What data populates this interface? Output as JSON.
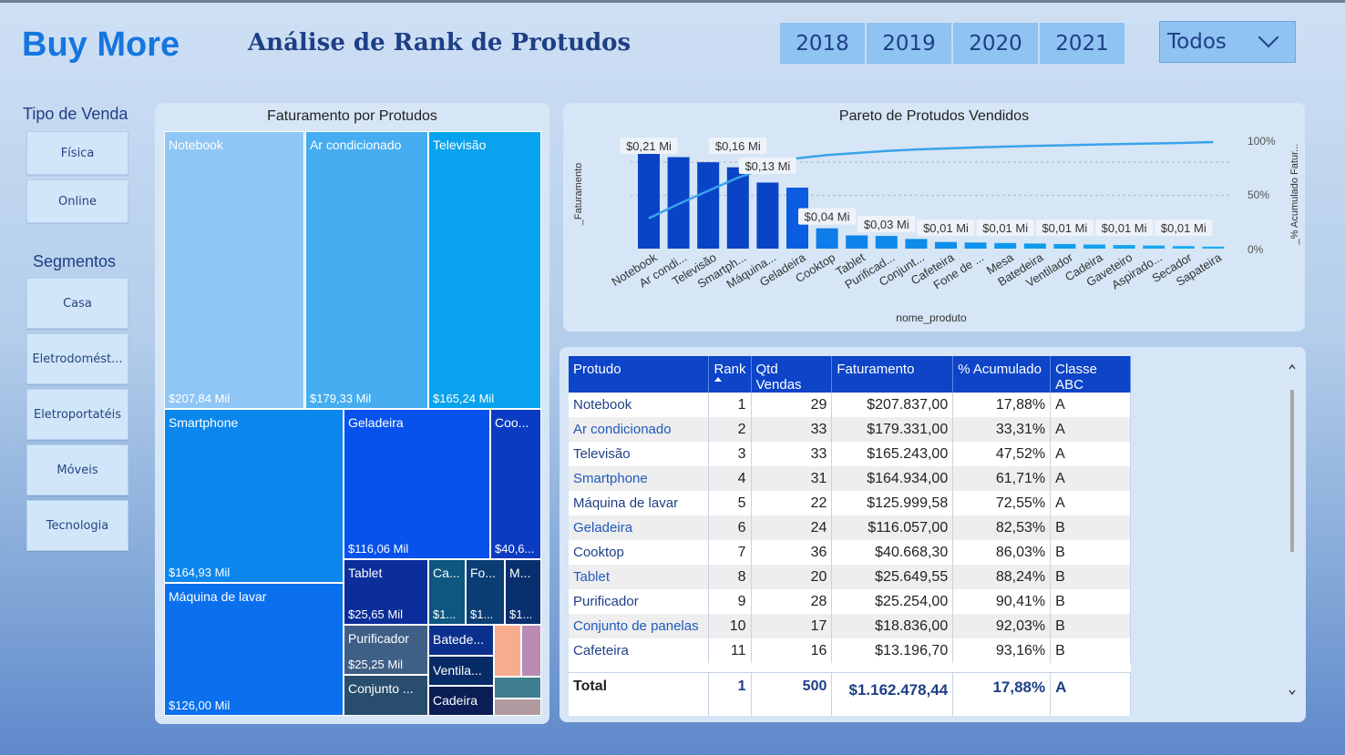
{
  "brand": "Buy More",
  "page_title": "Análise de Rank de Protudos",
  "years": [
    "2018",
    "2019",
    "2020",
    "2021"
  ],
  "dropdown": {
    "selected": "Todos"
  },
  "sidebar": {
    "tipo_heading": "Tipo de Venda",
    "tipo_items": [
      "Física",
      "Online"
    ],
    "segmentos_heading": "Segmentos",
    "segmentos_items": [
      "Casa",
      "Eletrodomést...",
      "Eletroportatéis",
      "Móveis",
      "Tecnologia"
    ]
  },
  "colors": {
    "accent": "#1676e0",
    "header_blue": "#0d44c8",
    "title_navy": "#1e3f86",
    "panel": "#d6e6f6"
  },
  "treemap": {
    "title": "Faturamento por Protudos",
    "tiles": [
      {
        "label": "Notebook",
        "value": "$207,84 Mil",
        "color": "#8ec6f5"
      },
      {
        "label": "Ar condicionado",
        "value": "$179,33 Mil",
        "color": "#45adf0"
      },
      {
        "label": "Televisão",
        "value": "$165,24 Mil",
        "color": "#08a2ee"
      },
      {
        "label": "Smartphone",
        "value": "$164,93 Mil",
        "color": "#0b86ec"
      },
      {
        "label": "Geladeira",
        "value": "$116,06 Mil",
        "color": "#0752ec"
      },
      {
        "label": "Coo...",
        "value": "$40,6...",
        "color": "#0a3bc2"
      },
      {
        "label": "Máquina de lavar",
        "value": "$126,00 Mil",
        "color": "#0a70ee"
      },
      {
        "label": "Tablet",
        "value": "$25,65 Mil",
        "color": "#0c2e9a"
      },
      {
        "label": "Ca...",
        "value": "$1...",
        "color": "#0d5780"
      },
      {
        "label": "Fo...",
        "value": "$1...",
        "color": "#0a3d74"
      },
      {
        "label": "M...",
        "value": "$1...",
        "color": "#092f6e"
      },
      {
        "label": "Purificador",
        "value": "$25,25 Mil",
        "color": "#3f5f86"
      },
      {
        "label": "Batede...",
        "value": "",
        "color": "#0b2f8c"
      },
      {
        "label": "Ventila...",
        "value": "",
        "color": "#062b66"
      },
      {
        "label": "Cadeira",
        "value": "",
        "color": "#0a1d55"
      },
      {
        "label": "Conjunto ...",
        "value": "",
        "color": "#284d6d"
      },
      {
        "label": "",
        "value": "",
        "color": "#f7ad8d"
      },
      {
        "label": "",
        "value": "",
        "color": "#b98bb2"
      },
      {
        "label": "",
        "value": "",
        "color": "#3f7e8e"
      },
      {
        "label": "",
        "value": "",
        "color": "#b09a9f"
      }
    ]
  },
  "chart_data": {
    "type": "bar",
    "title": "Pareto de Protudos Vendidos",
    "xlabel": "nome_produto",
    "ylabel": "_Faturamento",
    "y2label": "_% Acumulado Fatur...",
    "y2ticks": [
      "100%",
      "50%",
      "0%"
    ],
    "grid": true,
    "categories": [
      "Notebook",
      "Ar condi...",
      "Televisão",
      "Smartph...",
      "Máquina...",
      "Geladeira",
      "Cooktop",
      "Tablet",
      "Purificad...",
      "Conjunt...",
      "Cafeteira",
      "Fone de ...",
      "Mesa",
      "Batedeira",
      "Ventilador",
      "Cadeira",
      "Gaveteiro",
      "Aspirado...",
      "Secador",
      "Sapateira"
    ],
    "series": [
      {
        "values": [
          0.21,
          0.18,
          0.17,
          0.16,
          0.13,
          0.12,
          0.04,
          0.026,
          0.025,
          0.019,
          0.013,
          0.012,
          0.011,
          0.01,
          0.009,
          0.008,
          0.007,
          0.006,
          0.005,
          0.004
        ],
        "colors": [
          "#0a44c6",
          "#0a44c6",
          "#0a44c6",
          "#0a44c6",
          "#0a44c6",
          "#0b5ce0",
          "#0e7de9",
          "#0e84ea",
          "#0d8aeb",
          "#0d8ceb",
          "#0d90ec",
          "#0d94ec",
          "#0e98ec",
          "#0f9bec",
          "#119eed",
          "#13a1ed",
          "#15a4ee",
          "#17a7ee",
          "#19aaef",
          "#1baeef"
        ]
      },
      {
        "values": [
          17.88,
          33.31,
          47.52,
          61.71,
          72.55,
          82.53,
          86.03,
          88.24,
          90.41,
          92.03,
          93.16,
          94.2,
          95.1,
          95.9,
          96.6,
          97.3,
          97.9,
          98.5,
          99.1,
          100
        ]
      }
    ],
    "data_labels": [
      {
        "index": 0,
        "text": "$0,21 Mi"
      },
      {
        "index": 3,
        "text": "$0,16 Mi"
      },
      {
        "index": 4,
        "text": "$0,13 Mi"
      },
      {
        "index": 6,
        "text": "$0,04 Mi"
      },
      {
        "index": 8,
        "text": "$0,03 Mi"
      },
      {
        "index": 10,
        "text": "$0,01 Mi"
      },
      {
        "index": 12,
        "text": "$0,01 Mi"
      },
      {
        "index": 14,
        "text": "$0,01 Mi"
      },
      {
        "index": 16,
        "text": "$0,01 Mi"
      },
      {
        "index": 18,
        "text": "$0,01 Mi"
      }
    ]
  },
  "table": {
    "headers": [
      "Protudo",
      "Rank",
      "Qtd Vendas",
      "Faturamento",
      "% Acumulado",
      "Classe ABC"
    ],
    "rows": [
      {
        "produto": "Notebook",
        "rank": "1",
        "qtd": "29",
        "faturamento": "$207.837,00",
        "acumulado": "17,88%",
        "classe": "A"
      },
      {
        "produto": "Ar condicionado",
        "rank": "2",
        "qtd": "33",
        "faturamento": "$179.331,00",
        "acumulado": "33,31%",
        "classe": "A"
      },
      {
        "produto": "Televisão",
        "rank": "3",
        "qtd": "33",
        "faturamento": "$165.243,00",
        "acumulado": "47,52%",
        "classe": "A"
      },
      {
        "produto": "Smartphone",
        "rank": "4",
        "qtd": "31",
        "faturamento": "$164.934,00",
        "acumulado": "61,71%",
        "classe": "A"
      },
      {
        "produto": "Máquina de lavar",
        "rank": "5",
        "qtd": "22",
        "faturamento": "$125.999,58",
        "acumulado": "72,55%",
        "classe": "A"
      },
      {
        "produto": "Geladeira",
        "rank": "6",
        "qtd": "24",
        "faturamento": "$116.057,00",
        "acumulado": "82,53%",
        "classe": "B"
      },
      {
        "produto": "Cooktop",
        "rank": "7",
        "qtd": "36",
        "faturamento": "$40.668,30",
        "acumulado": "86,03%",
        "classe": "B"
      },
      {
        "produto": "Tablet",
        "rank": "8",
        "qtd": "20",
        "faturamento": "$25.649,55",
        "acumulado": "88,24%",
        "classe": "B"
      },
      {
        "produto": "Purificador",
        "rank": "9",
        "qtd": "28",
        "faturamento": "$25.254,00",
        "acumulado": "90,41%",
        "classe": "B"
      },
      {
        "produto": "Conjunto de panelas",
        "rank": "10",
        "qtd": "17",
        "faturamento": "$18.836,00",
        "acumulado": "92,03%",
        "classe": "B"
      },
      {
        "produto": "Cafeteira",
        "rank": "11",
        "qtd": "16",
        "faturamento": "$13.196,70",
        "acumulado": "93,16%",
        "classe": "B"
      }
    ],
    "total": {
      "label": "Total",
      "rank": "1",
      "qtd": "500",
      "faturamento": "$1.162.478,44",
      "acumulado": "17,88%",
      "classe": "A"
    }
  }
}
